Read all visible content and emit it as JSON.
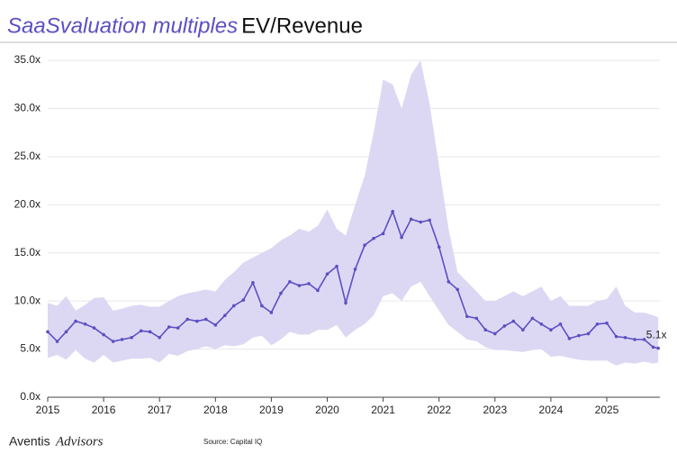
{
  "chart_data": {
    "type": "line",
    "title": "SaaSvaluation multiples",
    "subtitle": "EV/Revenue",
    "x": [
      2015.0,
      2015.17,
      2015.33,
      2015.5,
      2015.67,
      2015.83,
      2016.0,
      2016.17,
      2016.33,
      2016.5,
      2016.67,
      2016.83,
      2017.0,
      2017.17,
      2017.33,
      2017.5,
      2017.67,
      2017.83,
      2018.0,
      2018.17,
      2018.33,
      2018.5,
      2018.67,
      2018.83,
      2019.0,
      2019.17,
      2019.33,
      2019.5,
      2019.67,
      2019.83,
      2020.0,
      2020.17,
      2020.33,
      2020.5,
      2020.67,
      2020.83,
      2021.0,
      2021.17,
      2021.33,
      2021.5,
      2021.67,
      2021.83,
      2022.0,
      2022.17,
      2022.33,
      2022.5,
      2022.67,
      2022.83,
      2023.0,
      2023.17,
      2023.33,
      2023.5,
      2023.67,
      2023.83,
      2024.0,
      2024.17,
      2024.33,
      2024.5,
      2024.67,
      2024.83,
      2025.0,
      2025.17,
      2025.33,
      2025.5,
      2025.67,
      2025.83,
      2025.92
    ],
    "values": [
      6.8,
      5.8,
      6.8,
      7.9,
      7.6,
      7.2,
      6.5,
      5.8,
      6.0,
      6.2,
      6.9,
      6.8,
      6.2,
      7.3,
      7.2,
      8.1,
      7.9,
      8.1,
      7.5,
      8.5,
      9.5,
      10.1,
      11.9,
      9.5,
      8.8,
      10.8,
      12.0,
      11.6,
      11.8,
      11.1,
      12.8,
      13.6,
      9.8,
      13.3,
      15.8,
      16.5,
      17.0,
      19.3,
      16.6,
      18.5,
      18.2,
      18.4,
      15.6,
      12.0,
      11.2,
      8.4,
      8.2,
      7.0,
      6.6,
      7.4,
      7.9,
      7.0,
      8.2,
      7.6,
      7.0,
      7.6,
      6.1,
      6.4,
      6.6,
      7.6,
      7.7,
      6.3,
      6.2,
      6.0,
      6.0,
      5.2,
      5.1
    ],
    "range_high": [
      9.8,
      9.5,
      10.5,
      9.0,
      9.6,
      10.3,
      10.4,
      9.0,
      9.2,
      9.5,
      9.6,
      9.4,
      9.4,
      10.0,
      10.5,
      10.8,
      11.0,
      11.2,
      11.0,
      12.2,
      13.0,
      14.0,
      14.5,
      15.0,
      15.5,
      16.3,
      16.8,
      17.5,
      17.2,
      17.8,
      19.5,
      17.5,
      16.8,
      20.0,
      23.0,
      27.5,
      33.0,
      32.5,
      30.0,
      33.5,
      35.0,
      30.5,
      24.0,
      17.5,
      13.0,
      12.0,
      11.0,
      10.0,
      10.0,
      10.5,
      11.0,
      10.5,
      11.0,
      11.5,
      10.0,
      10.5,
      9.5,
      9.5,
      9.5,
      10.0,
      10.2,
      11.5,
      9.5,
      8.8,
      8.8,
      8.5,
      8.3
    ],
    "range_low": [
      4.1,
      4.4,
      3.9,
      4.9,
      4.0,
      3.6,
      4.4,
      3.6,
      3.8,
      4.0,
      4.0,
      4.1,
      3.6,
      4.5,
      4.3,
      4.8,
      5.0,
      5.3,
      5.0,
      5.4,
      5.3,
      5.5,
      6.2,
      6.4,
      5.4,
      6.0,
      6.8,
      6.5,
      6.5,
      7.0,
      7.0,
      7.5,
      6.2,
      7.0,
      7.6,
      8.5,
      10.5,
      10.8,
      10.0,
      11.5,
      12.0,
      10.5,
      9.0,
      7.5,
      6.8,
      6.0,
      5.8,
      5.2,
      4.9,
      4.9,
      4.8,
      4.7,
      4.9,
      5.0,
      4.2,
      4.3,
      4.1,
      3.9,
      3.8,
      3.8,
      3.8,
      3.3,
      3.6,
      3.5,
      3.7,
      3.5,
      3.6
    ],
    "last_value_label": "5.1x",
    "color": "#5b4fc4",
    "range_color": "#dcd8f3",
    "xlim": [
      2015,
      2025.95
    ],
    "ylim": [
      0,
      35
    ],
    "xticks": [
      2015,
      2016,
      2017,
      2018,
      2019,
      2020,
      2021,
      2022,
      2023,
      2024,
      2025
    ],
    "yticks": [
      {
        "value": 0,
        "label": "0.0x"
      },
      {
        "value": 5,
        "label": "5.0x"
      },
      {
        "value": 10,
        "label": "10.0x"
      },
      {
        "value": 15,
        "label": "15.0x"
      },
      {
        "value": 20,
        "label": "20.0x"
      },
      {
        "value": 25,
        "label": "25.0x"
      },
      {
        "value": 30,
        "label": "30.0x"
      },
      {
        "value": 35,
        "label": "35.0x"
      }
    ],
    "grid": true
  },
  "footer": {
    "brand": "Aventis",
    "brand_suffix": "Advisors",
    "source": "Source: Capital IQ"
  }
}
